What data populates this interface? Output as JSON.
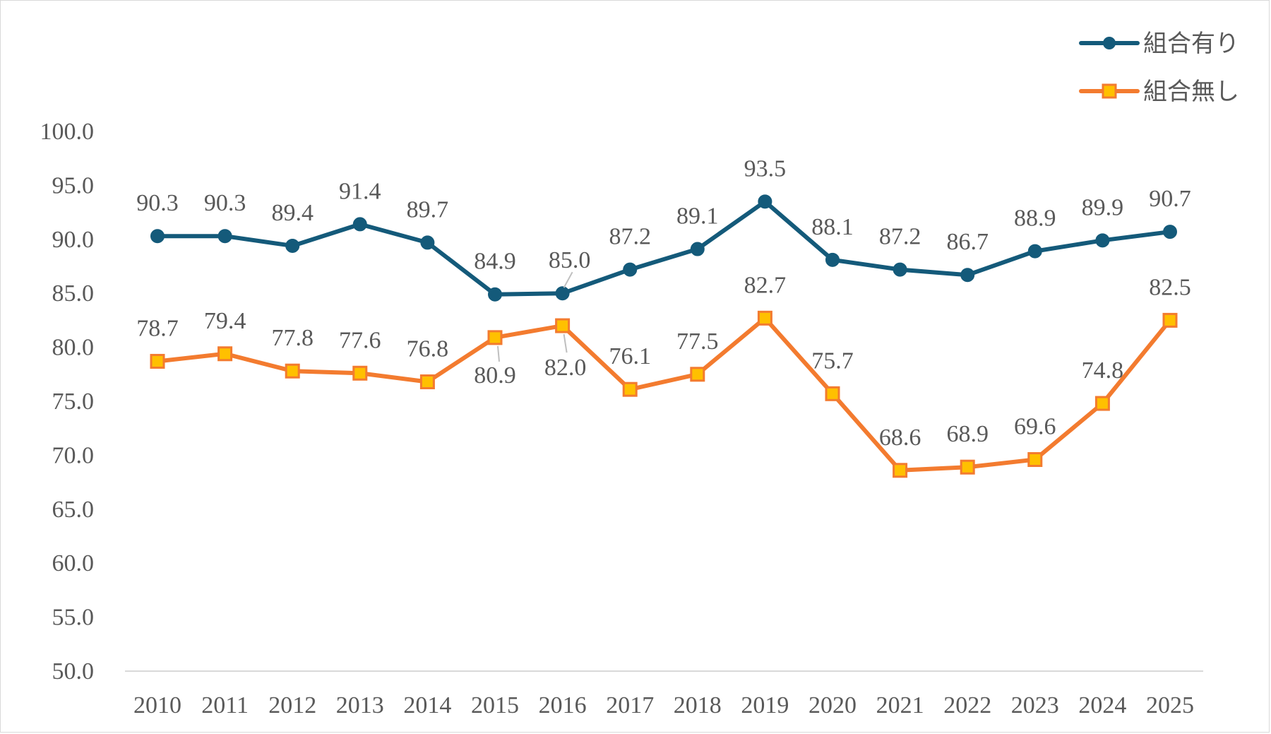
{
  "chart_data": {
    "type": "line",
    "categories": [
      "2010",
      "2011",
      "2012",
      "2013",
      "2014",
      "2015",
      "2016",
      "2017",
      "2018",
      "2019",
      "2020",
      "2021",
      "2022",
      "2023",
      "2024",
      "2025"
    ],
    "series": [
      {
        "name": "組合有り",
        "color": "#145a7a",
        "marker": "circle",
        "values": [
          90.3,
          90.3,
          89.4,
          91.4,
          89.7,
          84.9,
          85.0,
          87.2,
          89.1,
          93.5,
          88.1,
          87.2,
          86.7,
          88.9,
          89.9,
          90.7
        ],
        "labels": [
          "90.3",
          "90.3",
          "89.4",
          "91.4",
          "89.7",
          "84.9",
          "85.0",
          "87.2",
          "89.1",
          "93.5",
          "88.1",
          "87.2",
          "86.7",
          "88.9",
          "89.9",
          "90.7"
        ]
      },
      {
        "name": "組合無し",
        "color": "#f37b2f",
        "marker_fill": "#ffc000",
        "marker": "square",
        "values": [
          78.7,
          79.4,
          77.8,
          77.6,
          76.8,
          80.9,
          82.0,
          76.1,
          77.5,
          82.7,
          75.7,
          68.6,
          68.9,
          69.6,
          74.8,
          82.5
        ],
        "labels": [
          "78.7",
          "79.4",
          "77.8",
          "77.6",
          "76.8",
          "80.9",
          "82.0",
          "76.1",
          "77.5",
          "82.7",
          "75.7",
          "68.6",
          "68.9",
          "69.6",
          "74.8",
          "82.5"
        ]
      }
    ],
    "y_ticks": [
      "50.0",
      "55.0",
      "60.0",
      "65.0",
      "70.0",
      "75.0",
      "80.0",
      "85.0",
      "90.0",
      "95.0",
      "100.0"
    ],
    "ylim": [
      50,
      100
    ],
    "grid": false,
    "legend_position": "top-right",
    "title": "",
    "xlabel": "",
    "ylabel": ""
  }
}
